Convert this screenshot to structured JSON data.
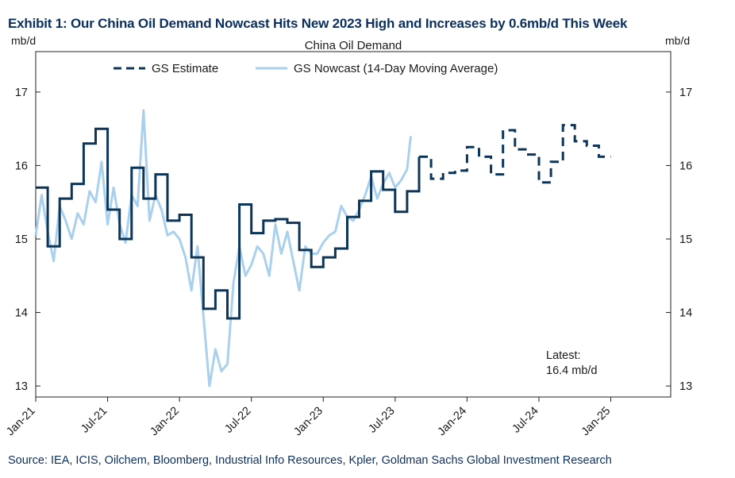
{
  "exhibit_title": "Exhibit 1: Our China Oil Demand Nowcast Hits New 2023 High and Increases by 0.6mb/d This Week",
  "source": "Source: IEA, ICIS, Oilchem, Bloomberg, Industrial Info Resources, Kpler, Goldman Sachs Global Investment Research",
  "colors": {
    "estimate": "#0d3558",
    "nowcast": "#a9d1ee",
    "title": "#0b2f5e"
  },
  "chart_data": {
    "type": "line",
    "title": "China Oil Demand",
    "ylabel_left": "mb/d",
    "ylabel_right": "mb/d",
    "y_ticks": [
      13,
      14,
      15,
      16,
      17
    ],
    "x_ticks": [
      "Jan-21",
      "Jul-21",
      "Jan-22",
      "Jul-22",
      "Jan-23",
      "Jul-23",
      "Jan-24",
      "Jul-24",
      "Jan-25"
    ],
    "xlim_months": [
      "Jan-21",
      "Jun-25"
    ],
    "ylim": [
      12.85,
      17.55
    ],
    "legend_position": "top",
    "annotation": {
      "line1": "Latest:",
      "line2": "16.4 mb/d"
    },
    "series": [
      {
        "name": "GS Estimate",
        "style": "step",
        "solid_until_month": 32,
        "months": [
          0,
          1,
          2,
          3,
          4,
          5,
          6,
          7,
          8,
          9,
          10,
          11,
          12,
          13,
          14,
          15,
          16,
          17,
          18,
          19,
          20,
          21,
          22,
          23,
          24,
          25,
          26,
          27,
          28,
          29,
          30,
          31,
          32,
          33,
          34,
          35,
          36,
          37,
          38,
          39,
          40,
          41,
          42,
          43,
          44,
          45,
          46,
          47,
          48
        ],
        "values": [
          15.7,
          14.9,
          15.55,
          15.75,
          16.3,
          16.5,
          15.4,
          15.0,
          15.97,
          15.55,
          15.88,
          15.25,
          15.33,
          14.75,
          14.05,
          14.3,
          13.92,
          15.47,
          15.08,
          15.25,
          15.27,
          15.22,
          14.85,
          14.62,
          14.75,
          14.87,
          15.3,
          15.52,
          15.92,
          15.67,
          15.37,
          15.65,
          16.12,
          15.82,
          15.9,
          15.93,
          16.25,
          16.12,
          15.88,
          16.48,
          16.22,
          16.15,
          15.77,
          16.05,
          16.55,
          16.33,
          16.27,
          16.12,
          16.12
        ]
      },
      {
        "name": "GS Nowcast (14-Day Moving Average)",
        "style": "line",
        "months": [
          0,
          0.5,
          1,
          1.5,
          2,
          2.5,
          3,
          3.5,
          4,
          4.5,
          5,
          5.5,
          6,
          6.5,
          7,
          7.5,
          8,
          8.5,
          9,
          9.5,
          10,
          10.5,
          11,
          11.5,
          12,
          12.5,
          13,
          13.5,
          14,
          14.5,
          15,
          15.5,
          16,
          16.5,
          17,
          17.5,
          18,
          18.5,
          19,
          19.5,
          20,
          20.5,
          21,
          21.5,
          22,
          22.5,
          23,
          23.5,
          24,
          24.5,
          25,
          25.5,
          26,
          26.5,
          27,
          27.5,
          28,
          28.5,
          29,
          29.5,
          30,
          30.5,
          31,
          31.3
        ],
        "values": [
          15.05,
          15.6,
          15.1,
          14.7,
          15.45,
          15.25,
          15.0,
          15.35,
          15.2,
          15.65,
          15.5,
          16.05,
          15.2,
          15.7,
          15.2,
          14.95,
          15.6,
          15.45,
          16.75,
          15.25,
          15.6,
          15.4,
          15.05,
          15.1,
          15.0,
          14.75,
          14.3,
          14.9,
          13.95,
          13.0,
          13.5,
          13.2,
          13.3,
          14.4,
          14.9,
          14.5,
          14.65,
          14.9,
          14.8,
          14.5,
          15.2,
          14.8,
          15.1,
          14.7,
          14.3,
          14.9,
          14.8,
          14.8,
          14.95,
          15.05,
          15.1,
          15.45,
          15.3,
          15.25,
          15.4,
          15.6,
          15.85,
          15.55,
          15.75,
          15.9,
          15.7,
          15.8,
          15.95,
          16.4
        ]
      }
    ]
  }
}
